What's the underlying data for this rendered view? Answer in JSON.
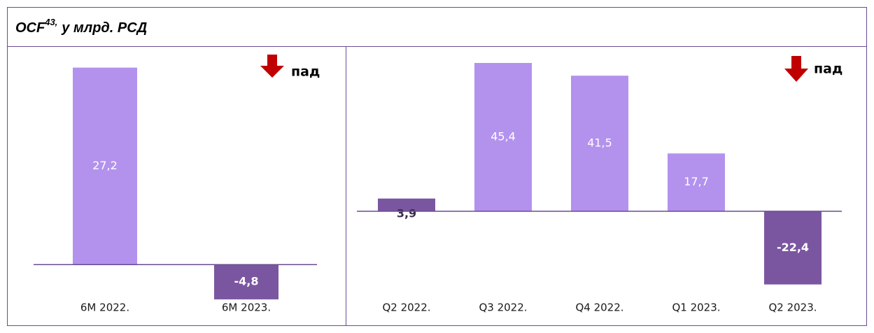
{
  "header": {
    "title": "OCF",
    "title_sup": "43,",
    "title_rest": "у млрд. РСД"
  },
  "chart_data": [
    {
      "type": "bar",
      "annotation": "пад",
      "categories": [
        "6M 2022.",
        "6M 2023."
      ],
      "values": [
        27.2,
        -4.8
      ],
      "value_labels": [
        "27,2",
        "-4,8"
      ],
      "colors": [
        "#b392ee",
        "#7b56a0"
      ],
      "ylim": [
        -5,
        29
      ]
    },
    {
      "type": "bar",
      "annotation": "пад",
      "categories": [
        "Q2 2022.",
        "Q3 2022.",
        "Q4 2022.",
        "Q1 2023.",
        "Q2 2023."
      ],
      "values": [
        3.9,
        45.4,
        41.5,
        17.7,
        -22.4
      ],
      "value_labels": [
        "3,9",
        "45,4",
        "41,5",
        "17,7",
        "-22,4"
      ],
      "colors": [
        "#7b56a0",
        "#b392ee",
        "#b392ee",
        "#b392ee",
        "#7b56a0"
      ],
      "ylim": [
        -25,
        50
      ]
    }
  ]
}
